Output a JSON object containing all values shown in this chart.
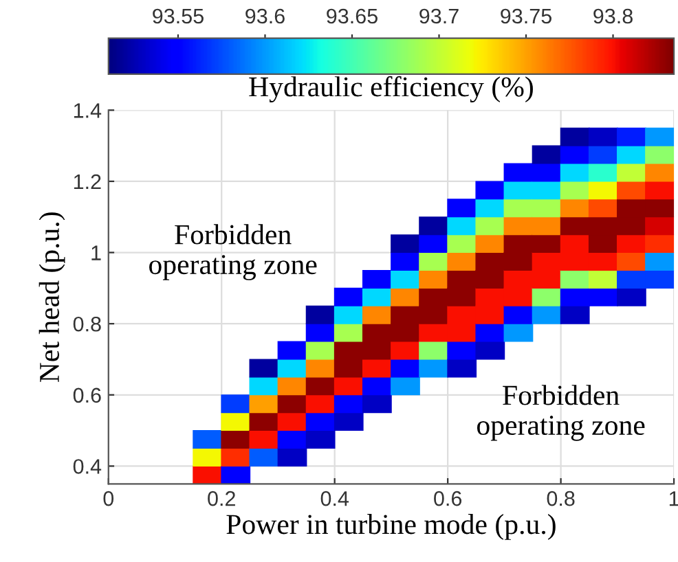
{
  "chart_data": {
    "type": "scatter",
    "xlabel": "Power in turbine mode (p.u.)",
    "ylabel": "Net head (p.u.)",
    "clabel": "Hydraulic efficiency (%)",
    "x": [
      0.175,
      0.175,
      0.175,
      0.225,
      0.225,
      0.225,
      0.225,
      0.225,
      0.275,
      0.275,
      0.275,
      0.275,
      0.275,
      0.275,
      0.325,
      0.325,
      0.325,
      0.325,
      0.325,
      0.325,
      0.325,
      0.375,
      0.375,
      0.375,
      0.375,
      0.375,
      0.375,
      0.375,
      0.375,
      0.425,
      0.425,
      0.425,
      0.425,
      0.425,
      0.425,
      0.425,
      0.425,
      0.475,
      0.475,
      0.475,
      0.475,
      0.475,
      0.475,
      0.475,
      0.475,
      0.525,
      0.525,
      0.525,
      0.525,
      0.525,
      0.525,
      0.525,
      0.525,
      0.525,
      0.575,
      0.575,
      0.575,
      0.575,
      0.575,
      0.575,
      0.575,
      0.575,
      0.575,
      0.625,
      0.625,
      0.625,
      0.625,
      0.625,
      0.625,
      0.625,
      0.625,
      0.625,
      0.625,
      0.675,
      0.675,
      0.675,
      0.675,
      0.675,
      0.675,
      0.675,
      0.675,
      0.675,
      0.675,
      0.725,
      0.725,
      0.725,
      0.725,
      0.725,
      0.725,
      0.725,
      0.725,
      0.725,
      0.725,
      0.775,
      0.775,
      0.775,
      0.775,
      0.775,
      0.775,
      0.775,
      0.775,
      0.775,
      0.775,
      0.825,
      0.825,
      0.825,
      0.825,
      0.825,
      0.825,
      0.825,
      0.825,
      0.825,
      0.825,
      0.825,
      0.875,
      0.875,
      0.875,
      0.875,
      0.875,
      0.875,
      0.875,
      0.875,
      0.875,
      0.875,
      0.925,
      0.925,
      0.925,
      0.925,
      0.925,
      0.925,
      0.925,
      0.925,
      0.925,
      0.925,
      0.975,
      0.975,
      0.975,
      0.975,
      0.975,
      0.975,
      0.975,
      0.975,
      0.975
    ],
    "values": [
      0.375,
      0.425,
      0.475,
      0.375,
      0.425,
      0.475,
      0.525,
      0.575,
      0.425,
      0.475,
      0.525,
      0.575,
      0.625,
      0.675,
      0.425,
      0.475,
      0.525,
      0.575,
      0.625,
      0.675,
      0.725,
      0.475,
      0.525,
      0.575,
      0.625,
      0.675,
      0.725,
      0.775,
      0.825,
      0.525,
      0.575,
      0.625,
      0.675,
      0.725,
      0.775,
      0.825,
      0.875,
      0.575,
      0.625,
      0.675,
      0.725,
      0.775,
      0.825,
      0.875,
      0.925,
      0.625,
      0.675,
      0.725,
      0.775,
      0.825,
      0.875,
      0.925,
      0.975,
      1.025,
      0.675,
      0.725,
      0.775,
      0.825,
      0.875,
      0.925,
      0.975,
      1.025,
      1.075,
      0.675,
      0.725,
      0.775,
      0.825,
      0.875,
      0.925,
      0.975,
      1.025,
      1.075,
      1.125,
      0.725,
      0.775,
      0.825,
      0.875,
      0.925,
      0.975,
      1.025,
      1.075,
      1.125,
      1.175,
      0.775,
      0.825,
      0.875,
      0.925,
      0.975,
      1.025,
      1.075,
      1.125,
      1.175,
      1.225,
      0.825,
      0.875,
      0.925,
      0.975,
      1.025,
      1.075,
      1.125,
      1.175,
      1.225,
      1.275,
      0.825,
      0.875,
      0.925,
      0.975,
      1.025,
      1.075,
      1.125,
      1.175,
      1.225,
      1.275,
      1.325,
      0.875,
      0.925,
      0.975,
      1.025,
      1.075,
      1.125,
      1.175,
      1.225,
      1.275,
      1.325,
      0.875,
      0.925,
      0.975,
      1.025,
      1.075,
      1.125,
      1.175,
      1.225,
      1.275,
      1.325,
      0.925,
      0.975,
      1.025,
      1.075,
      1.125,
      1.175,
      1.225,
      1.275,
      1.325
    ],
    "cvalues": [
      93.8,
      93.72,
      93.58,
      93.55,
      93.79,
      93.83,
      93.72,
      93.57,
      93.58,
      93.8,
      93.83,
      93.75,
      93.62,
      93.52,
      93.53,
      93.55,
      93.8,
      93.83,
      93.76,
      93.62,
      93.55,
      93.53,
      93.55,
      93.8,
      93.83,
      93.76,
      93.69,
      93.55,
      93.52,
      93.53,
      93.55,
      93.8,
      93.83,
      93.83,
      93.69,
      93.62,
      93.55,
      93.53,
      93.55,
      93.8,
      93.83,
      93.83,
      93.76,
      93.62,
      93.55,
      93.6,
      93.55,
      93.8,
      93.83,
      93.83,
      93.76,
      93.62,
      93.55,
      93.52,
      93.6,
      93.68,
      93.8,
      93.83,
      93.83,
      93.76,
      93.69,
      93.55,
      93.52,
      93.53,
      93.55,
      93.8,
      93.8,
      93.83,
      93.83,
      93.76,
      93.69,
      93.62,
      93.55,
      93.53,
      93.55,
      93.8,
      93.8,
      93.83,
      93.83,
      93.76,
      93.69,
      93.62,
      93.55,
      93.6,
      93.55,
      93.8,
      93.8,
      93.83,
      93.83,
      93.76,
      93.69,
      93.62,
      93.55,
      93.6,
      93.68,
      93.8,
      93.8,
      93.83,
      93.76,
      93.69,
      93.62,
      93.55,
      93.52,
      93.53,
      93.55,
      93.68,
      93.8,
      93.8,
      93.83,
      93.76,
      93.69,
      93.62,
      93.55,
      93.52,
      93.55,
      93.7,
      93.8,
      93.83,
      93.83,
      93.78,
      93.72,
      93.64,
      93.57,
      93.53,
      93.53,
      93.57,
      93.78,
      93.8,
      93.83,
      93.83,
      93.78,
      93.7,
      93.62,
      93.56,
      93.57,
      93.6,
      93.79,
      93.81,
      93.83,
      93.8,
      93.76,
      93.68,
      93.6
    ],
    "xlim": [
      0,
      1
    ],
    "ylim": [
      0.35,
      1.4
    ],
    "xticks": [
      0,
      0.2,
      0.4,
      0.6,
      0.8,
      1
    ],
    "yticks": [
      0.4,
      0.6,
      0.8,
      1,
      1.2,
      1.4
    ],
    "clim": [
      93.51,
      93.835
    ],
    "cticks": [
      93.55,
      93.6,
      93.65,
      93.7,
      93.75,
      93.8
    ],
    "grid": true,
    "annotations": [
      "Forbidden\noperating zone",
      "Forbidden\noperating zone"
    ]
  }
}
